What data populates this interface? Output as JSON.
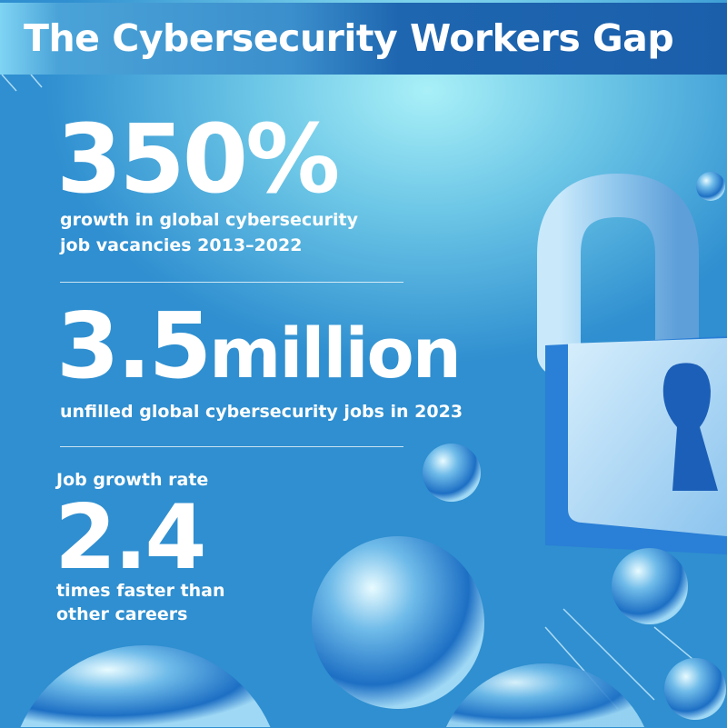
{
  "title": "The Cybersecurity Workers Gap",
  "stats": [
    {
      "value": "350%",
      "description_lines": [
        "growth in global cybersecurity",
        "job vacancies 2013–2022"
      ]
    },
    {
      "value": "3.5",
      "unit": "million",
      "description_lines": [
        "unfilled global cybersecurity jobs in 2023"
      ]
    },
    {
      "label": "Job growth rate",
      "value": "2.4",
      "description_lines": [
        "times faster than",
        "other careers"
      ]
    }
  ],
  "colors": {
    "banner": "#1b5fab",
    "background": "#2f8fd0",
    "text": "#ffffff"
  },
  "illustration": {
    "icon": "open-padlock-icon"
  }
}
